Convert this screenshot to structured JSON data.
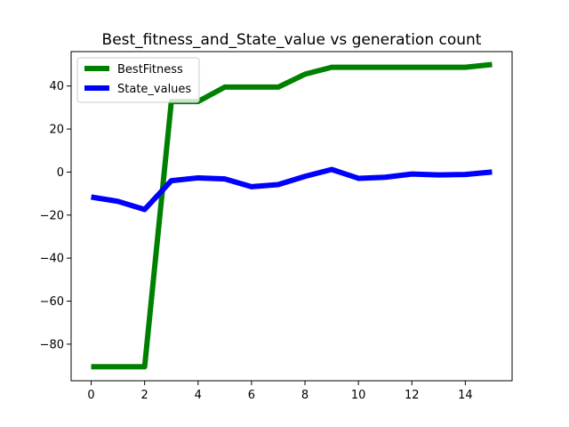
{
  "chart_data": {
    "type": "line",
    "title": "Best_fitness_and_State_value vs generation count",
    "xlabel": "",
    "ylabel": "",
    "xlim": [
      -0.75,
      15.75
    ],
    "ylim": [
      -97,
      56
    ],
    "xticks": [
      0,
      2,
      4,
      6,
      8,
      10,
      12,
      14
    ],
    "yticks": [
      -80,
      -60,
      -40,
      -20,
      0,
      20,
      40
    ],
    "ytick_labels": [
      "−80",
      "−60",
      "−40",
      "−20",
      "0",
      "20",
      "40"
    ],
    "grid": false,
    "legend_position": "top-left",
    "x": [
      0,
      1,
      2,
      3,
      4,
      5,
      6,
      7,
      8,
      9,
      10,
      11,
      12,
      13,
      14,
      15
    ],
    "series": [
      {
        "name": "BestFitness",
        "color": "#008000",
        "values": [
          -90.5,
          -90.5,
          -90.5,
          32.8,
          32.8,
          39.5,
          39.5,
          39.5,
          45.5,
          48.7,
          48.7,
          48.7,
          48.7,
          48.7,
          48.7,
          50.0
        ]
      },
      {
        "name": "State_values",
        "color": "#0000ff",
        "values": [
          -11.6,
          -13.6,
          -17.4,
          -4.0,
          -2.7,
          -3.2,
          -6.8,
          -5.8,
          -2.0,
          1.2,
          -2.9,
          -2.4,
          -0.9,
          -1.3,
          -1.1,
          0.0
        ]
      }
    ]
  }
}
